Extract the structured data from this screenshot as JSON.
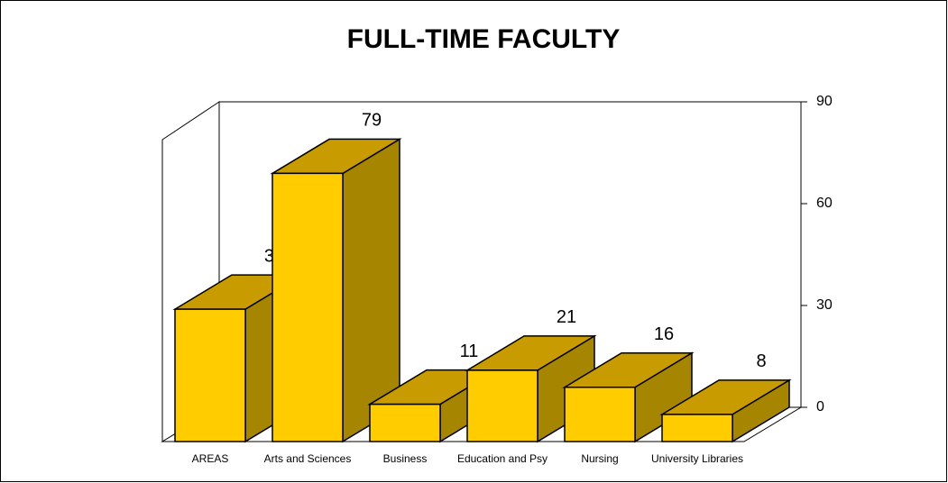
{
  "chart_data": {
    "type": "bar3d",
    "title": "FULL-TIME FACULTY",
    "categories": [
      "AREAS",
      "Arts and Sciences",
      "Business",
      "Education and Psy",
      "Nursing",
      "University Libraries"
    ],
    "values": [
      39,
      79,
      11,
      21,
      16,
      8
    ],
    "color": "#ffcc00",
    "ylim": [
      0,
      90
    ],
    "yticks": [
      0,
      30,
      60,
      90
    ],
    "grid": false
  }
}
